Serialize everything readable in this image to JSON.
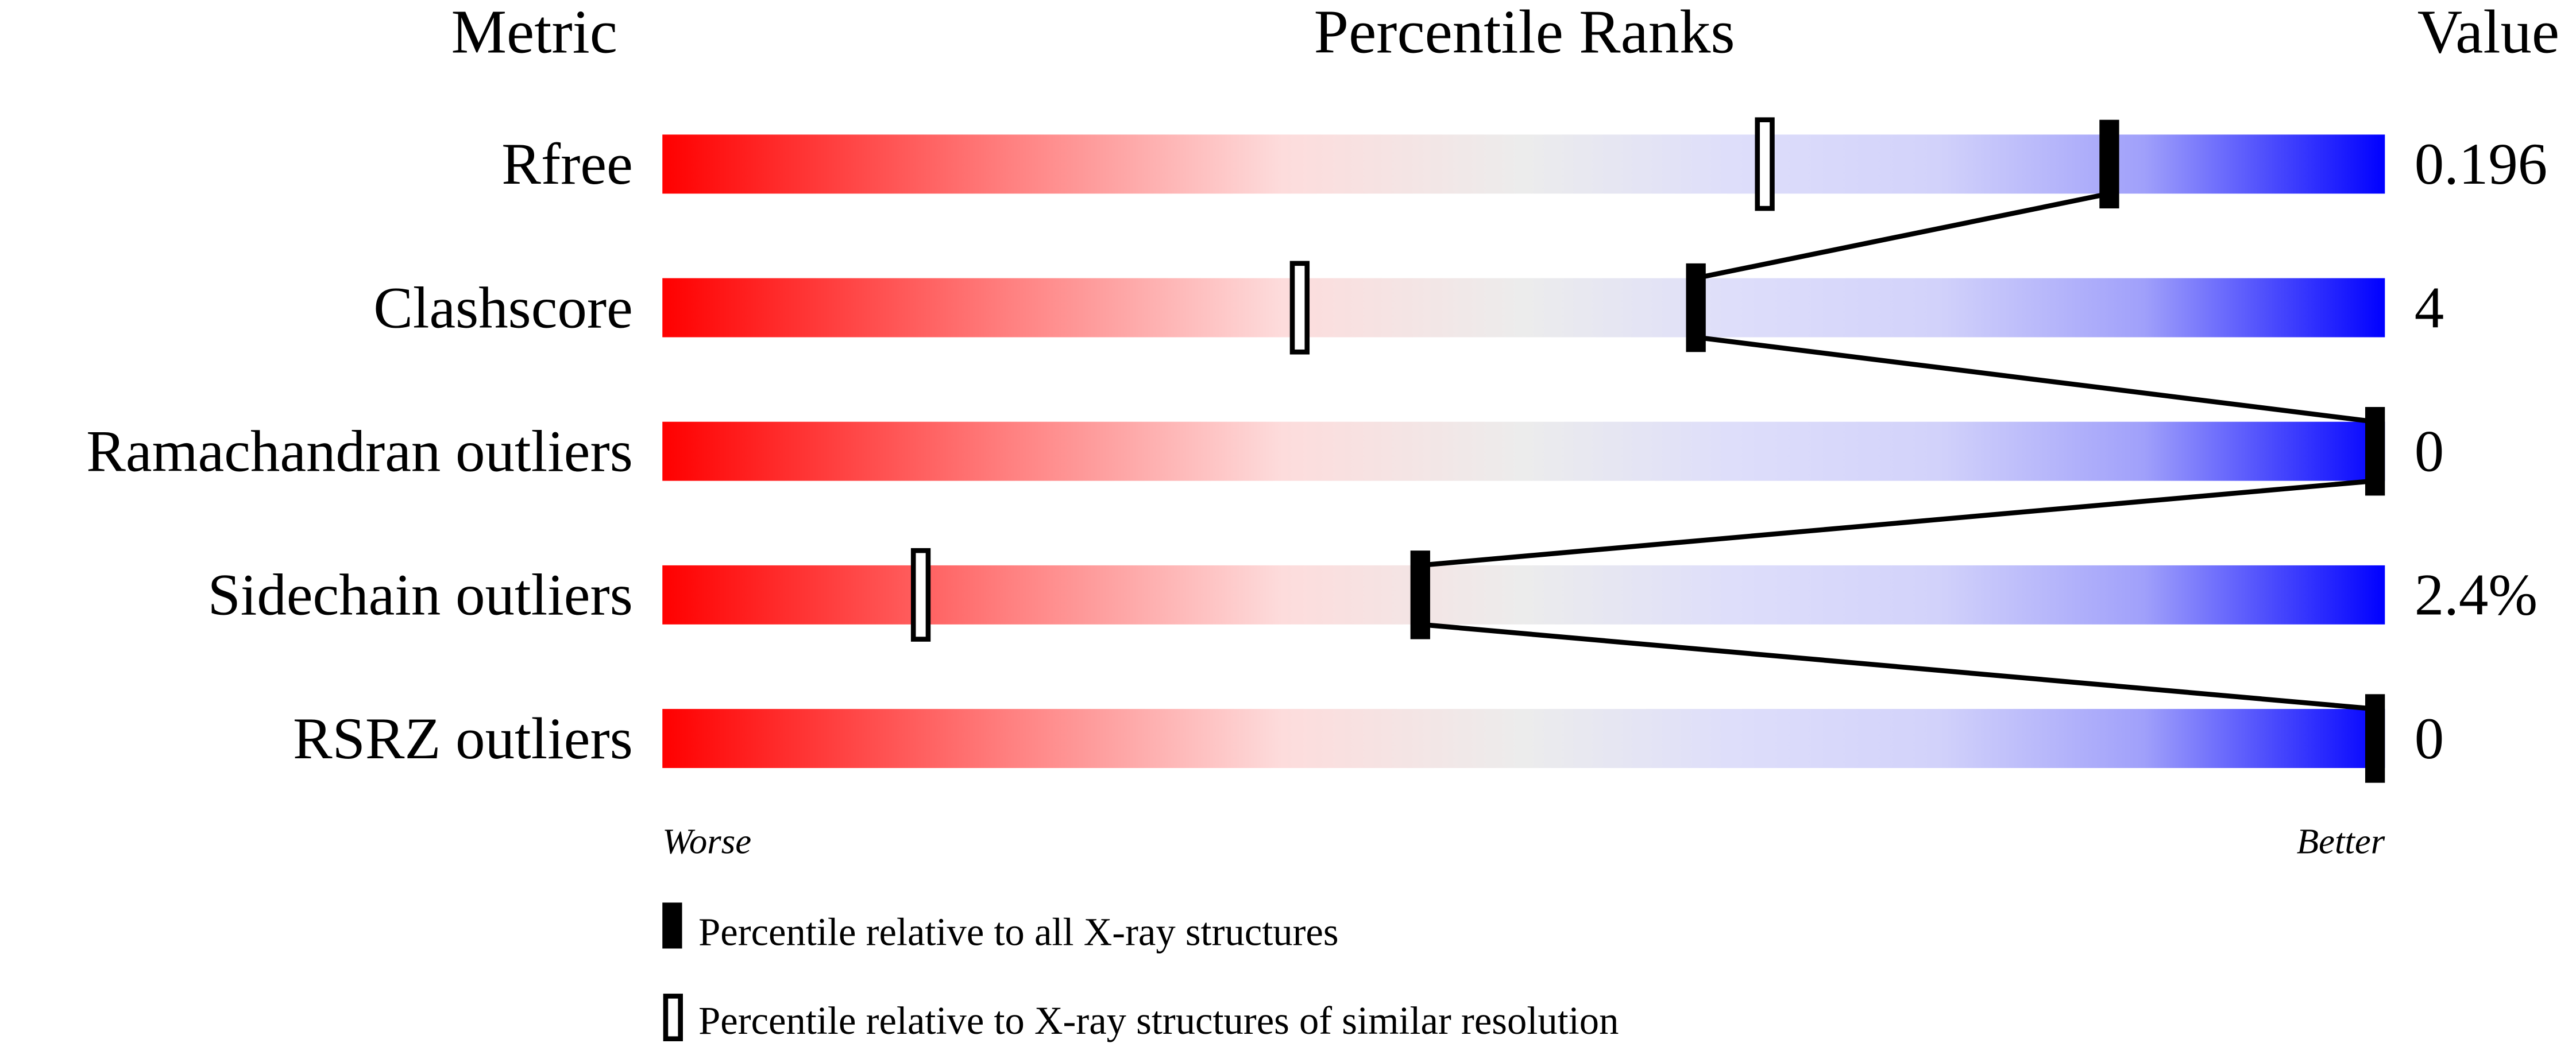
{
  "chart_data": {
    "type": "bar",
    "headers": {
      "metric": "Metric",
      "percentile": "Percentile Ranks",
      "value": "Value"
    },
    "xlim": [
      0,
      100
    ],
    "axis_labels": {
      "left": "Worse",
      "right": "Better"
    },
    "metrics": [
      {
        "name": "Rfree",
        "value": "0.196",
        "percentile_all": 84,
        "percentile_similar": 64
      },
      {
        "name": "Clashscore",
        "value": "4",
        "percentile_all": 60,
        "percentile_similar": 37
      },
      {
        "name": "Ramachandran outliers",
        "value": "0",
        "percentile_all": 100,
        "percentile_similar": null
      },
      {
        "name": "Sidechain outliers",
        "value": "2.4%",
        "percentile_all": 44,
        "percentile_similar": 15
      },
      {
        "name": "RSRZ outliers",
        "value": "0",
        "percentile_all": 100,
        "percentile_similar": null
      }
    ],
    "legend": {
      "filled": "Percentile relative to all X-ray structures",
      "open": "Percentile relative to X-ray structures of similar resolution"
    },
    "colors": {
      "worse": "#ff0000",
      "middle": "#ececec",
      "better": "#0000ff"
    }
  }
}
